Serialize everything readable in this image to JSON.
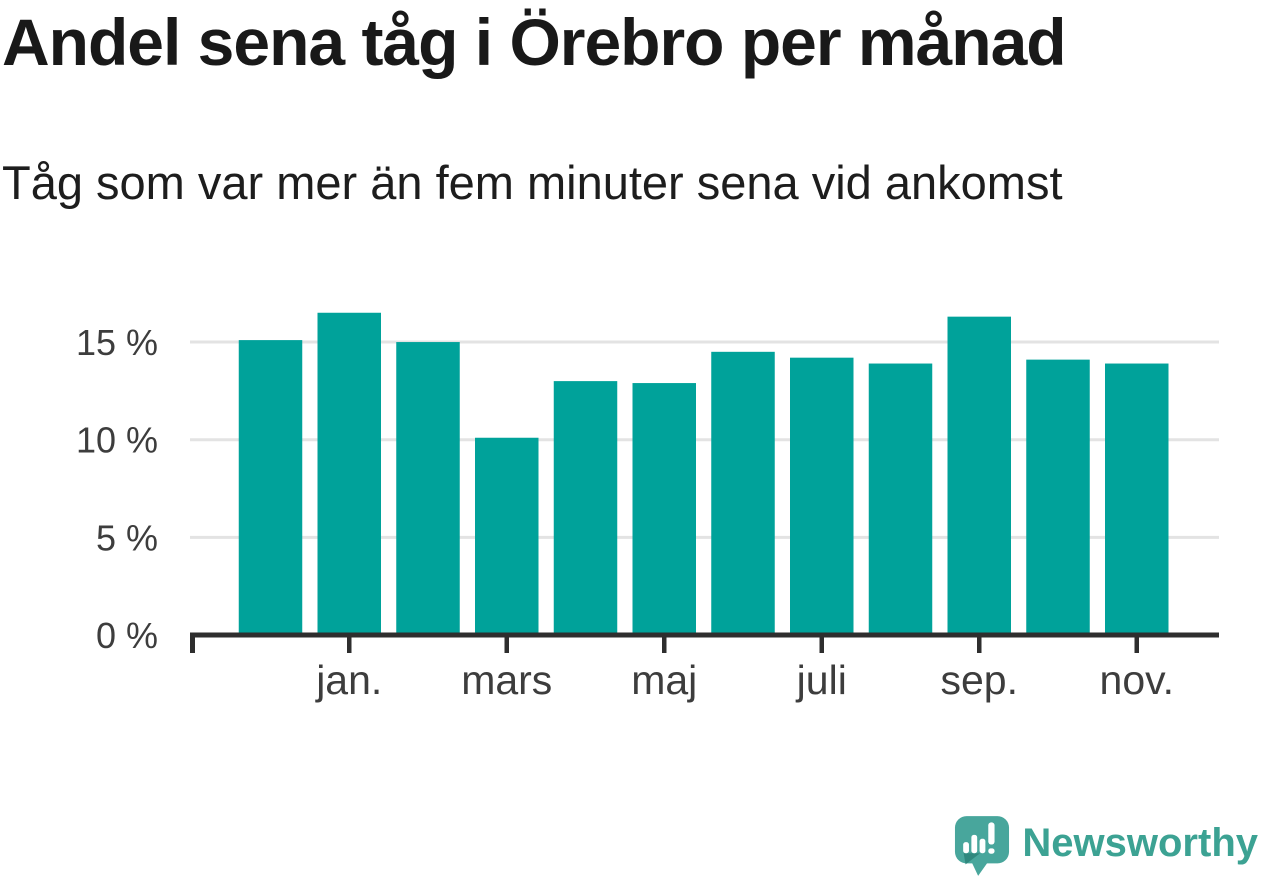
{
  "header": {
    "title": "Andel sena tåg i Örebro per månad",
    "subtitle": "Tåg som var mer än fem minuter sena vid ankomst"
  },
  "chart_data": {
    "type": "bar",
    "title": "Andel sena tåg i Örebro per månad",
    "subtitle": "Tåg som var mer än fem minuter sena vid ankomst",
    "categories": [
      "",
      "jan.",
      "",
      "mars",
      "",
      "maj",
      "",
      "juli",
      "",
      "sep.",
      "",
      "nov."
    ],
    "values": [
      15.1,
      16.5,
      15.0,
      10.1,
      13.0,
      12.9,
      14.5,
      14.2,
      13.9,
      16.3,
      14.1,
      13.9
    ],
    "unit": "%",
    "xlabel": "",
    "ylabel": "",
    "y_ticks": [
      0,
      5,
      10,
      15
    ],
    "y_tick_labels": [
      "0 %",
      "5 %",
      "10 %",
      "15 %"
    ],
    "ylim": [
      0,
      17.5
    ],
    "grid": true,
    "legend": "none",
    "bar_color": "#00a29a"
  },
  "branding": {
    "logo_text": "Newsworthy"
  },
  "colors": {
    "bar": "#00a29a",
    "grid": "#e3e3e3",
    "axis": "#2e2e2e",
    "tick_label": "#3d3d3d",
    "title_text": "#191919",
    "subtitle_text": "#1d1d1d",
    "logo_mark": "#48a69c",
    "logo_mark_shadow": "#2f887e",
    "logo_bars": "#ffffff",
    "logo_text_color": "#3ca293"
  }
}
